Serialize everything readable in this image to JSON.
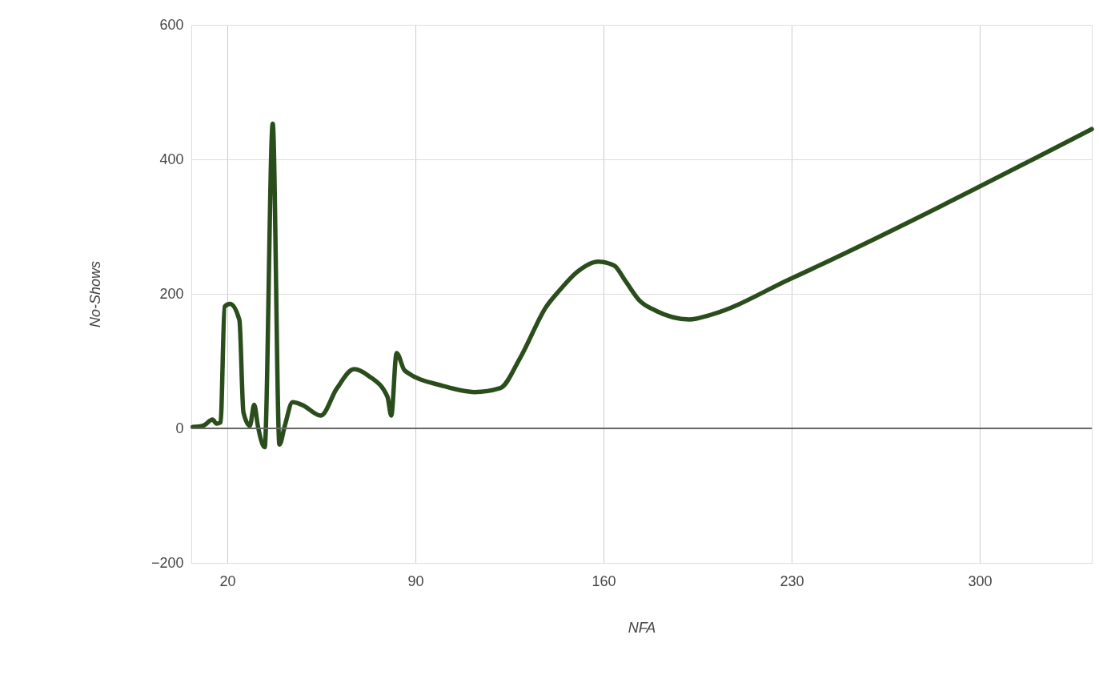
{
  "chart_data": {
    "type": "line",
    "xlabel": "NFA",
    "ylabel": "No-Shows",
    "x": [
      7.1,
      11,
      14.5,
      16,
      17.5,
      19,
      21,
      24.5,
      26,
      28.4,
      30,
      31.4,
      33.9,
      36.9,
      39.4,
      41.4,
      44.3,
      47.8,
      54.8,
      60.7,
      67.2,
      72.6,
      79.6,
      81,
      83,
      86,
      100.4,
      112,
      121.6,
      129,
      138.7,
      143.6,
      150,
      158,
      164,
      168,
      173.4,
      179.4,
      191.9,
      200,
      229.4,
      341.7
    ],
    "series": [
      {
        "color": "#2a4d1c",
        "values": [
          2,
          4,
          13,
          7,
          9,
          181,
          185,
          161,
          24,
          4,
          35,
          3,
          -28,
          453,
          -24,
          4,
          39,
          35,
          19,
          59,
          88,
          78,
          47,
          19,
          112,
          86,
          63,
          54,
          60,
          105,
          181,
          205,
          232,
          248,
          242,
          220,
          190,
          175,
          162,
          169,
          222,
          445
        ]
      }
    ],
    "xlim": [
      6.6,
      341.7
    ],
    "xticks": [
      20,
      90,
      160,
      230,
      300
    ],
    "ylim": [
      -200,
      600
    ],
    "yticks": [
      -200,
      0,
      200,
      400,
      600
    ],
    "grid": true,
    "marker": "none",
    "line_style": "solid",
    "ref_lines": [
      {
        "axis": "y",
        "value": 0,
        "color": "#666666"
      }
    ]
  }
}
